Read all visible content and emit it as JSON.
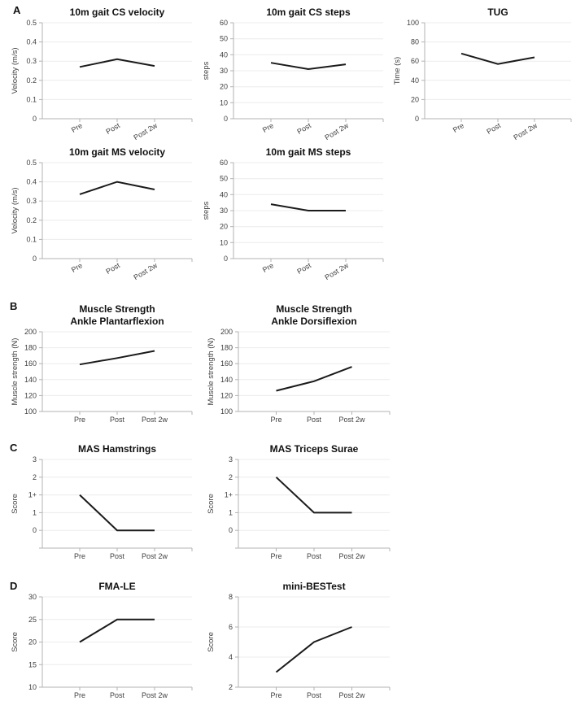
{
  "figure": {
    "panel_labels": [
      "A",
      "B",
      "C",
      "D"
    ],
    "x_categories": [
      "Pre",
      "Post",
      "Post 2w"
    ]
  },
  "colors": {
    "line": "#1a1a1a",
    "axis": "#b3b3b3",
    "grid": "#ececec",
    "tick_text": "#404040",
    "title_text": "#111111",
    "background": "#ffffff"
  },
  "chart_data": [
    {
      "id": "10m-gait-cs-velocity",
      "type": "line",
      "title_lines": [
        "10m gait CS velocity"
      ],
      "ylabel": "Velocity (m/s)",
      "categories": [
        "Pre",
        "Post",
        "Post 2w"
      ],
      "values": [
        0.27,
        0.31,
        0.275
      ],
      "ylim": [
        0,
        0.5
      ],
      "yticks": {
        "positions": [
          0,
          0.1,
          0.2,
          0.3,
          0.4,
          0.5
        ],
        "labels": [
          "0",
          "0.1",
          "0.2",
          "0.3",
          "0.4",
          "0.5"
        ]
      },
      "xlabel_rotated": true,
      "grid": "y-only",
      "legend": "none"
    },
    {
      "id": "10m-gait-cs-steps",
      "type": "line",
      "title_lines": [
        "10m gait CS steps"
      ],
      "ylabel": "steps",
      "categories": [
        "Pre",
        "Post",
        "Post 2w"
      ],
      "values": [
        35,
        31,
        34
      ],
      "ylim": [
        0,
        60
      ],
      "yticks": {
        "positions": [
          0,
          10,
          20,
          30,
          40,
          50,
          60
        ],
        "labels": [
          "0",
          "10",
          "20",
          "30",
          "40",
          "50",
          "60"
        ]
      },
      "xlabel_rotated": true,
      "grid": "y-only",
      "legend": "none"
    },
    {
      "id": "tug",
      "type": "line",
      "title_lines": [
        "TUG"
      ],
      "ylabel": "Time (s)",
      "categories": [
        "Pre",
        "Post",
        "Post 2w"
      ],
      "values": [
        68,
        57,
        64
      ],
      "ylim": [
        0,
        100
      ],
      "yticks": {
        "positions": [
          0,
          20,
          40,
          60,
          80,
          100
        ],
        "labels": [
          "0",
          "20",
          "40",
          "60",
          "80",
          "100"
        ]
      },
      "xlabel_rotated": true,
      "grid": "y-only",
      "legend": "none"
    },
    {
      "id": "10m-gait-ms-velocity",
      "type": "line",
      "title_lines": [
        "10m gait MS velocity"
      ],
      "ylabel": "Velocity (m/s)",
      "categories": [
        "Pre",
        "Post",
        "Post 2w"
      ],
      "values": [
        0.335,
        0.4,
        0.36
      ],
      "ylim": [
        0,
        0.5
      ],
      "yticks": {
        "positions": [
          0,
          0.1,
          0.2,
          0.3,
          0.4,
          0.5
        ],
        "labels": [
          "0",
          "0.1",
          "0.2",
          "0.3",
          "0.4",
          "0.5"
        ]
      },
      "xlabel_rotated": true,
      "grid": "y-only",
      "legend": "none"
    },
    {
      "id": "10m-gait-ms-steps",
      "type": "line",
      "title_lines": [
        "10m gait MS steps"
      ],
      "ylabel": "steps",
      "categories": [
        "Pre",
        "Post",
        "Post 2w"
      ],
      "values": [
        34,
        30,
        30
      ],
      "ylim": [
        0,
        60
      ],
      "yticks": {
        "positions": [
          0,
          10,
          20,
          30,
          40,
          50,
          60
        ],
        "labels": [
          "0",
          "10",
          "20",
          "30",
          "40",
          "50",
          "60"
        ]
      },
      "xlabel_rotated": true,
      "grid": "y-only",
      "legend": "none"
    },
    {
      "id": "muscle-strength-ankle-plantarflexion",
      "type": "line",
      "title_lines": [
        "Muscle Strength",
        "Ankle Plantarflexion"
      ],
      "ylabel": "Muscle strength (N)",
      "categories": [
        "Pre",
        "Post",
        "Post 2w"
      ],
      "values": [
        159,
        167,
        176
      ],
      "ylim": [
        100,
        200
      ],
      "yticks": {
        "positions": [
          100,
          120,
          140,
          160,
          180,
          200
        ],
        "labels": [
          "100",
          "120",
          "140",
          "160",
          "180",
          "200"
        ]
      },
      "xlabel_rotated": false,
      "grid": "y-only",
      "legend": "none"
    },
    {
      "id": "muscle-strength-ankle-dorsiflexion",
      "type": "line",
      "title_lines": [
        "Muscle Strength",
        "Ankle Dorsiflexion"
      ],
      "ylabel": "Muscle strength (N)",
      "categories": [
        "Pre",
        "Post",
        "Post 2w"
      ],
      "values": [
        126,
        138,
        156
      ],
      "ylim": [
        100,
        200
      ],
      "yticks": {
        "positions": [
          100,
          120,
          140,
          160,
          180,
          200
        ],
        "labels": [
          "100",
          "120",
          "140",
          "160",
          "180",
          "200"
        ]
      },
      "xlabel_rotated": false,
      "grid": "y-only",
      "legend": "none"
    },
    {
      "id": "mas-hamstrings",
      "type": "line",
      "title_lines": [
        "MAS Hamstrings"
      ],
      "ylabel": "Score",
      "categories": [
        "Pre",
        "Post",
        "Post 2w"
      ],
      "values": [
        3,
        1,
        1
      ],
      "score_values": [
        "1+",
        "0",
        "0"
      ],
      "scale_note": "ordinal MAS scale: 0, 1, 1+, 2, 3 (values are tick index positions)",
      "ylim": [
        0,
        5
      ],
      "yticks": {
        "positions": [
          0,
          1,
          2,
          3,
          4,
          5
        ],
        "labels": [
          "",
          "0",
          "1",
          "1+",
          "2",
          "3"
        ]
      },
      "xlabel_rotated": false,
      "grid": "y-only",
      "legend": "none"
    },
    {
      "id": "mas-triceps-surae",
      "type": "line",
      "title_lines": [
        "MAS Triceps Surae"
      ],
      "ylabel": "Score",
      "categories": [
        "Pre",
        "Post",
        "Post 2w"
      ],
      "values": [
        4,
        2,
        2
      ],
      "score_values": [
        "2",
        "1",
        "1"
      ],
      "scale_note": "ordinal MAS scale: 0, 1, 1+, 2, 3 (values are tick index positions)",
      "ylim": [
        0,
        5
      ],
      "yticks": {
        "positions": [
          0,
          1,
          2,
          3,
          4,
          5
        ],
        "labels": [
          "",
          "0",
          "1",
          "1+",
          "2",
          "3"
        ]
      },
      "xlabel_rotated": false,
      "grid": "y-only",
      "legend": "none"
    },
    {
      "id": "fma-le",
      "type": "line",
      "title_lines": [
        "FMA-LE"
      ],
      "ylabel": "Score",
      "categories": [
        "Pre",
        "Post",
        "Post 2w"
      ],
      "values": [
        20,
        25,
        25
      ],
      "ylim": [
        10,
        30
      ],
      "yticks": {
        "positions": [
          10,
          15,
          20,
          25,
          30
        ],
        "labels": [
          "10",
          "15",
          "20",
          "25",
          "30"
        ]
      },
      "xlabel_rotated": false,
      "grid": "y-only",
      "legend": "none"
    },
    {
      "id": "mini-bestest",
      "type": "line",
      "title_lines": [
        "mini-BESTest"
      ],
      "ylabel": "Score",
      "categories": [
        "Pre",
        "Post",
        "Post 2w"
      ],
      "values": [
        3,
        5,
        6
      ],
      "ylim": [
        2,
        8
      ],
      "yticks": {
        "positions": [
          2,
          4,
          6,
          8
        ],
        "labels": [
          "2",
          "4",
          "6",
          "8"
        ]
      },
      "xlabel_rotated": false,
      "grid": "y-only",
      "legend": "none"
    }
  ]
}
